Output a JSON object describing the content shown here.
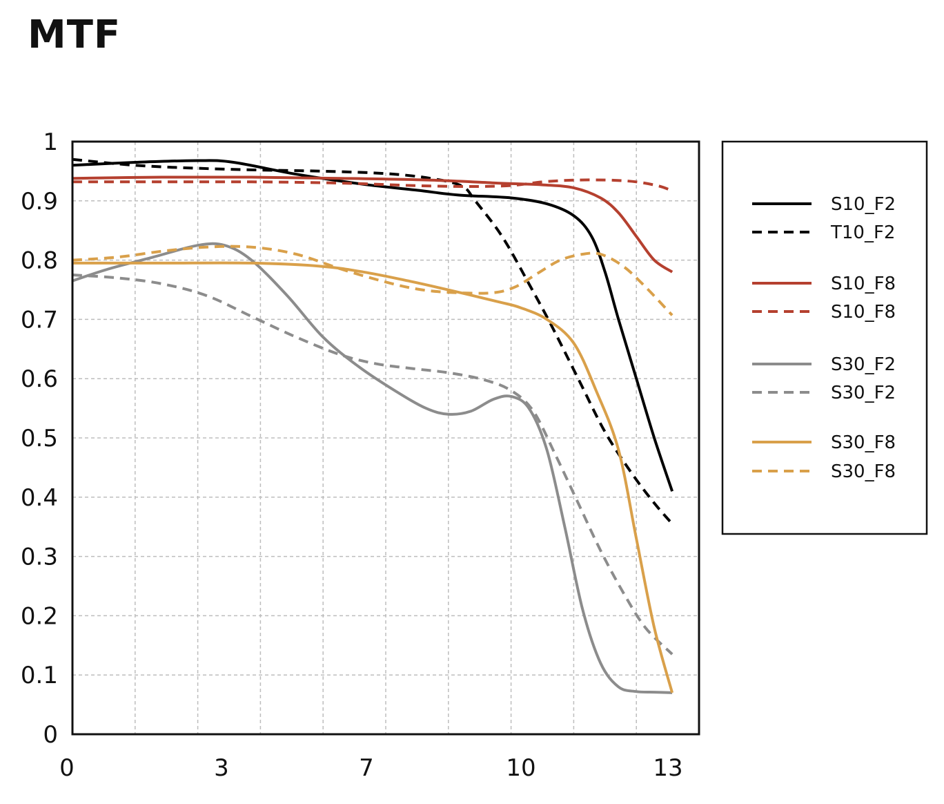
{
  "chart_data": {
    "type": "line",
    "title": "MTF",
    "xlabel": "",
    "ylabel": "",
    "xlim": [
      0,
      14
    ],
    "ylim": [
      0,
      1
    ],
    "x_ticks": [
      0,
      3,
      7,
      10,
      13
    ],
    "y_ticks": [
      "0",
      "0.1",
      "0.2",
      "0.3",
      "0.4",
      "0.5",
      "0.6",
      "0.7",
      "0.8",
      "0.9",
      "1"
    ],
    "grid": true,
    "legend_placement": "right",
    "series": [
      {
        "name": "S10_F2",
        "color": "#000000",
        "dash": false,
        "points": [
          [
            0,
            0.96
          ],
          [
            1.4,
            0.965
          ],
          [
            2.8,
            0.968
          ],
          [
            3.6,
            0.965
          ],
          [
            5,
            0.945
          ],
          [
            6.5,
            0.928
          ],
          [
            7.7,
            0.918
          ],
          [
            8.6,
            0.91
          ],
          [
            9.8,
            0.905
          ],
          [
            10.6,
            0.895
          ],
          [
            11.2,
            0.875
          ],
          [
            11.6,
            0.84
          ],
          [
            11.9,
            0.78
          ],
          [
            12.2,
            0.7
          ],
          [
            12.6,
            0.6
          ],
          [
            13,
            0.5
          ],
          [
            13.4,
            0.41
          ]
        ]
      },
      {
        "name": "T10_F2",
        "color": "#000000",
        "dash": true,
        "points": [
          [
            0,
            0.97
          ],
          [
            1.4,
            0.96
          ],
          [
            2.8,
            0.955
          ],
          [
            4.2,
            0.952
          ],
          [
            5.6,
            0.95
          ],
          [
            7,
            0.946
          ],
          [
            8,
            0.938
          ],
          [
            8.7,
            0.925
          ],
          [
            9,
            0.9
          ],
          [
            9.6,
            0.84
          ],
          [
            10.2,
            0.76
          ],
          [
            10.7,
            0.69
          ],
          [
            11.3,
            0.6
          ],
          [
            11.9,
            0.51
          ],
          [
            12.5,
            0.44
          ],
          [
            13,
            0.39
          ],
          [
            13.4,
            0.355
          ]
        ]
      },
      {
        "name": "S10_F8",
        "color": "#B5402F",
        "dash": false,
        "points": [
          [
            0,
            0.938
          ],
          [
            2,
            0.94
          ],
          [
            4,
            0.94
          ],
          [
            6,
            0.938
          ],
          [
            8,
            0.935
          ],
          [
            9.5,
            0.93
          ],
          [
            10.5,
            0.927
          ],
          [
            11.2,
            0.922
          ],
          [
            11.8,
            0.905
          ],
          [
            12.2,
            0.88
          ],
          [
            12.6,
            0.84
          ],
          [
            13,
            0.8
          ],
          [
            13.4,
            0.78
          ]
        ]
      },
      {
        "name": "S10_F8",
        "color": "#B5402F",
        "dash": true,
        "points": [
          [
            0,
            0.932
          ],
          [
            2,
            0.932
          ],
          [
            4,
            0.932
          ],
          [
            6,
            0.93
          ],
          [
            8,
            0.925
          ],
          [
            9.6,
            0.925
          ],
          [
            10.5,
            0.932
          ],
          [
            11.2,
            0.935
          ],
          [
            12,
            0.935
          ],
          [
            12.6,
            0.932
          ],
          [
            13.1,
            0.925
          ],
          [
            13.4,
            0.917
          ]
        ]
      },
      {
        "name": "S30_F2",
        "color": "#8C8C8C",
        "dash": false,
        "points": [
          [
            0,
            0.765
          ],
          [
            0.8,
            0.785
          ],
          [
            1.8,
            0.805
          ],
          [
            2.8,
            0.825
          ],
          [
            3.4,
            0.825
          ],
          [
            4,
            0.8
          ],
          [
            4.8,
            0.74
          ],
          [
            5.6,
            0.67
          ],
          [
            6.4,
            0.62
          ],
          [
            7.2,
            0.58
          ],
          [
            7.9,
            0.55
          ],
          [
            8.4,
            0.54
          ],
          [
            8.9,
            0.545
          ],
          [
            9.4,
            0.565
          ],
          [
            9.8,
            0.57
          ],
          [
            10.2,
            0.55
          ],
          [
            10.6,
            0.48
          ],
          [
            11,
            0.35
          ],
          [
            11.4,
            0.21
          ],
          [
            11.8,
            0.12
          ],
          [
            12.2,
            0.08
          ],
          [
            12.6,
            0.072
          ],
          [
            13,
            0.071
          ],
          [
            13.4,
            0.07
          ]
        ]
      },
      {
        "name": "S30_F2",
        "color": "#8C8C8C",
        "dash": true,
        "points": [
          [
            0,
            0.775
          ],
          [
            1,
            0.77
          ],
          [
            2,
            0.76
          ],
          [
            3,
            0.74
          ],
          [
            4,
            0.705
          ],
          [
            5,
            0.67
          ],
          [
            6,
            0.64
          ],
          [
            6.8,
            0.625
          ],
          [
            7.6,
            0.617
          ],
          [
            8.4,
            0.61
          ],
          [
            9.2,
            0.598
          ],
          [
            9.8,
            0.58
          ],
          [
            10.3,
            0.545
          ],
          [
            10.8,
            0.47
          ],
          [
            11.3,
            0.39
          ],
          [
            11.8,
            0.31
          ],
          [
            12.3,
            0.24
          ],
          [
            12.8,
            0.18
          ],
          [
            13.4,
            0.135
          ]
        ]
      },
      {
        "name": "S30_F8",
        "color": "#D9A04A",
        "dash": false,
        "points": [
          [
            0,
            0.795
          ],
          [
            2,
            0.795
          ],
          [
            4,
            0.795
          ],
          [
            5.5,
            0.79
          ],
          [
            6.5,
            0.78
          ],
          [
            7.5,
            0.765
          ],
          [
            8.5,
            0.748
          ],
          [
            9.5,
            0.73
          ],
          [
            10,
            0.72
          ],
          [
            10.6,
            0.7
          ],
          [
            11.2,
            0.66
          ],
          [
            11.7,
            0.58
          ],
          [
            12.2,
            0.48
          ],
          [
            12.6,
            0.33
          ],
          [
            13,
            0.18
          ],
          [
            13.4,
            0.07
          ]
        ]
      },
      {
        "name": "S30_F8",
        "color": "#D9A04A",
        "dash": true,
        "points": [
          [
            0,
            0.8
          ],
          [
            1,
            0.805
          ],
          [
            2,
            0.815
          ],
          [
            3,
            0.822
          ],
          [
            4,
            0.822
          ],
          [
            5,
            0.81
          ],
          [
            6,
            0.785
          ],
          [
            7,
            0.763
          ],
          [
            7.8,
            0.75
          ],
          [
            8.6,
            0.745
          ],
          [
            9.4,
            0.745
          ],
          [
            9.9,
            0.755
          ],
          [
            10.4,
            0.778
          ],
          [
            10.9,
            0.8
          ],
          [
            11.4,
            0.81
          ],
          [
            11.8,
            0.81
          ],
          [
            12.3,
            0.79
          ],
          [
            12.8,
            0.755
          ],
          [
            13.4,
            0.707
          ]
        ]
      }
    ]
  }
}
